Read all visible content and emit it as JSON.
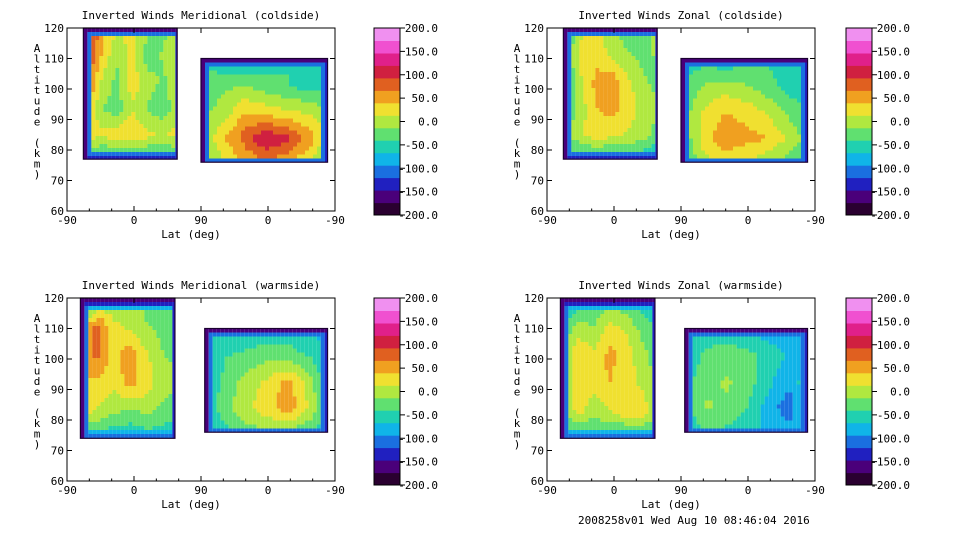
{
  "figure": {
    "footer": "2008258v01 Wed Aug 10 08:46:04 2016"
  },
  "colorbar": {
    "tick_labels": [
      "200.0",
      "150.0",
      "100.0",
      "50.0",
      "0.0",
      "-50.0",
      "-100.0",
      "-150.0",
      "-200.0"
    ],
    "range": [
      -200,
      200
    ],
    "colors": [
      "#2a0030",
      "#4a007a",
      "#2020c0",
      "#1a6fe0",
      "#10b4e8",
      "#20d0b0",
      "#60e070",
      "#b0e840",
      "#f0e030",
      "#f0a020",
      "#e06020",
      "#d02040",
      "#e0208a",
      "#f050d0",
      "#f090f0"
    ]
  },
  "chart_data": [
    {
      "type": "heatmap",
      "title": "Inverted Winds Meridional (coldside)",
      "xlabel": "Lat (deg)",
      "ylabel": "Altitude (km)",
      "xticks": [
        "-90",
        "0",
        "90",
        "0",
        "-90"
      ],
      "yticks": [
        "60",
        "70",
        "80",
        "90",
        "100",
        "110",
        "120"
      ],
      "ylim": [
        60,
        120
      ],
      "grid": false,
      "segments": [
        {
          "x_range": [
            -68,
            58
          ],
          "alt_range": [
            77,
            120
          ],
          "values": [
            [
              120,
              60,
              10,
              30,
              -10,
              -20,
              0
            ],
            [
              110,
              40,
              -10,
              20,
              -30,
              -10,
              10
            ],
            [
              90,
              10,
              -20,
              30,
              0,
              -20,
              20
            ],
            [
              60,
              -10,
              -30,
              10,
              -20,
              -30,
              0
            ],
            [
              30,
              20,
              30,
              40,
              20,
              10,
              30
            ],
            [
              -40,
              -60,
              -70,
              -60,
              -60,
              -70,
              -50
            ]
          ]
        },
        {
          "x_range": [
            -80,
            90
          ],
          "alt_range": [
            76,
            110
          ],
          "values": [
            [
              -40,
              -60,
              -70,
              -50,
              -40,
              -60,
              -80
            ],
            [
              -30,
              -20,
              -10,
              -30,
              -40,
              -50,
              -40
            ],
            [
              -20,
              0,
              40,
              30,
              20,
              10,
              -10
            ],
            [
              -10,
              40,
              80,
              120,
              100,
              60,
              0
            ],
            [
              -30,
              10,
              40,
              60,
              40,
              10,
              -40
            ]
          ]
        }
      ]
    },
    {
      "type": "heatmap",
      "title": "Inverted Winds Zonal (coldside)",
      "xlabel": "Lat (deg)",
      "ylabel": "Altitude (km)",
      "xticks": [
        "-90",
        "0",
        "90",
        "0",
        "-90"
      ],
      "yticks": [
        "60",
        "70",
        "80",
        "90",
        "100",
        "110",
        "120"
      ],
      "ylim": [
        60,
        120
      ],
      "grid": false,
      "segments": [
        {
          "x_range": [
            -68,
            58
          ],
          "alt_range": [
            77,
            120
          ],
          "values": [
            [
              -60,
              10,
              20,
              -10,
              -30,
              -20,
              0
            ],
            [
              -30,
              20,
              30,
              10,
              -10,
              -20,
              -10
            ],
            [
              -60,
              10,
              50,
              60,
              20,
              -10,
              -20
            ],
            [
              -40,
              0,
              40,
              50,
              30,
              0,
              -10
            ],
            [
              -20,
              10,
              30,
              20,
              10,
              0,
              -30
            ],
            [
              -60,
              -70,
              -60,
              -70,
              -60,
              -70,
              -80
            ]
          ]
        },
        {
          "x_range": [
            -80,
            90
          ],
          "alt_range": [
            76,
            110
          ],
          "values": [
            [
              -60,
              -50,
              -60,
              -50,
              -40,
              -60,
              -70
            ],
            [
              -40,
              -10,
              0,
              -10,
              -30,
              -50,
              -60
            ],
            [
              -30,
              20,
              40,
              30,
              10,
              -20,
              -40
            ],
            [
              -40,
              30,
              60,
              50,
              40,
              10,
              -30
            ],
            [
              -50,
              0,
              20,
              10,
              -10,
              -30,
              -50
            ]
          ]
        }
      ]
    },
    {
      "type": "heatmap",
      "title": "Inverted Winds Meridional (warmside)",
      "xlabel": "Lat (deg)",
      "ylabel": "Altitude (km)",
      "xticks": [
        "-90",
        "0",
        "90",
        "0",
        "-90"
      ],
      "yticks": [
        "60",
        "70",
        "80",
        "90",
        "100",
        "110",
        "120"
      ],
      "ylim": [
        60,
        120
      ],
      "grid": false,
      "segments": [
        {
          "x_range": [
            -72,
            55
          ],
          "alt_range": [
            74,
            120
          ],
          "values": [
            [
              -80,
              -20,
              -10,
              0,
              -20,
              -30,
              -40
            ],
            [
              30,
              80,
              20,
              10,
              -10,
              -20,
              -30
            ],
            [
              60,
              70,
              30,
              60,
              20,
              -10,
              -20
            ],
            [
              40,
              30,
              20,
              50,
              30,
              0,
              -10
            ],
            [
              20,
              10,
              -10,
              -20,
              -10,
              -20,
              -30
            ],
            [
              -50,
              -60,
              -70,
              -70,
              -60,
              -60,
              -70
            ]
          ]
        },
        {
          "x_range": [
            -80,
            85
          ],
          "alt_range": [
            76,
            110
          ],
          "values": [
            [
              -70,
              -60,
              -70,
              -60,
              -50,
              -70,
              -80
            ],
            [
              -60,
              -40,
              -30,
              -20,
              -30,
              -40,
              -70
            ],
            [
              -60,
              -30,
              0,
              20,
              50,
              0,
              -60
            ],
            [
              -60,
              -20,
              10,
              30,
              60,
              10,
              -50
            ],
            [
              -70,
              -50,
              -30,
              -20,
              -30,
              -40,
              -60
            ]
          ]
        }
      ]
    },
    {
      "type": "heatmap",
      "title": "Inverted Winds Zonal (warmside)",
      "xlabel": "Lat (deg)",
      "ylabel": "Altitude (km)",
      "xticks": [
        "-90",
        "0",
        "90",
        "0",
        "-90"
      ],
      "yticks": [
        "60",
        "70",
        "80",
        "90",
        "100",
        "110",
        "120"
      ],
      "ylim": [
        60,
        120
      ],
      "grid": false,
      "segments": [
        {
          "x_range": [
            -72,
            55
          ],
          "alt_range": [
            74,
            120
          ],
          "values": [
            [
              -100,
              -70,
              -40,
              -20,
              -40,
              -60,
              -80
            ],
            [
              -40,
              0,
              -10,
              20,
              10,
              -20,
              -40
            ],
            [
              -30,
              40,
              20,
              50,
              30,
              0,
              -30
            ],
            [
              -20,
              30,
              20,
              40,
              20,
              10,
              -20
            ],
            [
              -10,
              20,
              0,
              10,
              30,
              40,
              -10
            ],
            [
              -60,
              -70,
              -60,
              -60,
              -70,
              -70,
              -80
            ]
          ]
        },
        {
          "x_range": [
            -80,
            85
          ],
          "alt_range": [
            76,
            110
          ],
          "values": [
            [
              -70,
              -60,
              -60,
              -70,
              -80,
              -80,
              -90
            ],
            [
              -60,
              -30,
              -20,
              -30,
              -50,
              -70,
              -80
            ],
            [
              -50,
              -20,
              -10,
              -30,
              -60,
              -90,
              -40
            ],
            [
              -50,
              -10,
              -20,
              -40,
              -80,
              -110,
              -50
            ],
            [
              -60,
              -40,
              -50,
              -60,
              -70,
              -80,
              -70
            ]
          ]
        }
      ]
    }
  ]
}
